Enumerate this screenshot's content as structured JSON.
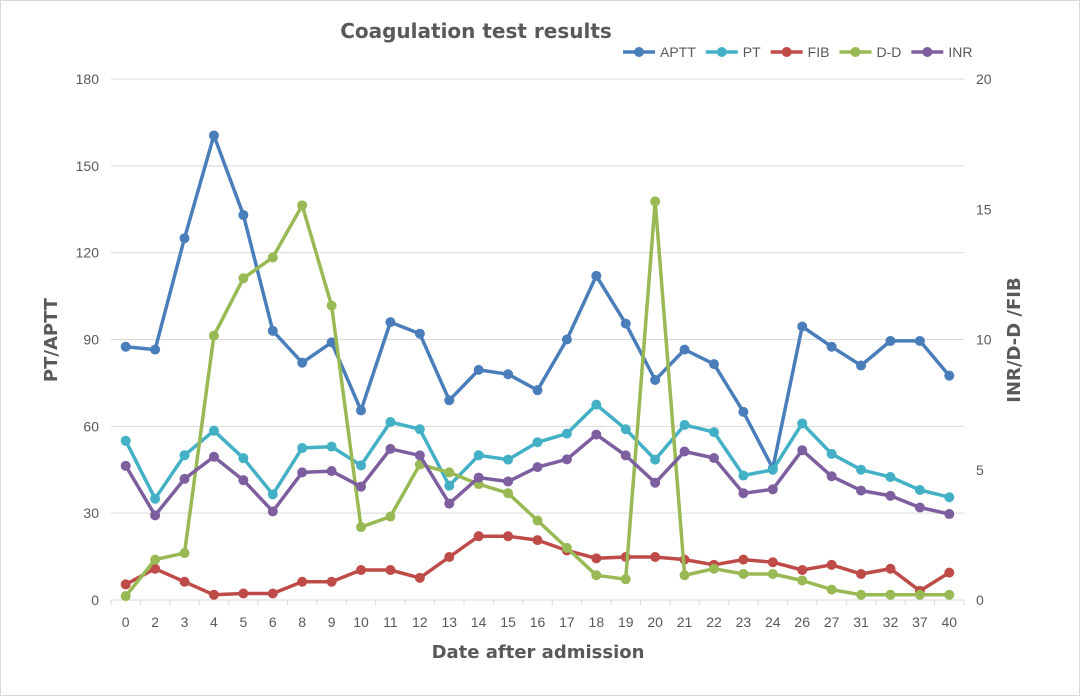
{
  "chart_data": {
    "type": "line",
    "title": "Coagulation test results",
    "xlabel": "Date after admission",
    "ylabel_left": "PT/APTT",
    "ylabel_right": "INR/D-D /FIB",
    "ylim_left": [
      0,
      180
    ],
    "yticks_left": [
      0,
      30,
      60,
      90,
      120,
      150,
      180
    ],
    "ylim_right": [
      0,
      20
    ],
    "yticks_right": [
      0,
      5,
      10,
      15,
      20
    ],
    "grid": "horizontal",
    "legend_position": "top-right",
    "categories": [
      "0",
      "2",
      "3",
      "4",
      "5",
      "6",
      "8",
      "9",
      "10",
      "11",
      "12",
      "13",
      "14",
      "15",
      "16",
      "17",
      "18",
      "19",
      "20",
      "21",
      "22",
      "23",
      "24",
      "26",
      "27",
      "31",
      "32",
      "37",
      "40"
    ],
    "series": [
      {
        "name": "APTT",
        "axis": "left",
        "color": "#4a7ebb",
        "values": [
          87.5,
          86.5,
          125,
          160.5,
          133,
          93,
          82,
          89,
          65.5,
          96,
          92,
          69,
          79.5,
          78,
          72.5,
          90,
          112,
          95.5,
          76,
          86.5,
          81.5,
          65,
          45.5,
          94.5,
          87.5,
          81,
          89.5,
          89.5,
          77.5
        ]
      },
      {
        "name": "PT",
        "axis": "left",
        "color": "#43b0c6",
        "values": [
          55,
          35,
          50,
          58.5,
          49,
          36.5,
          52.5,
          53,
          46.5,
          61.5,
          59,
          39.5,
          50,
          48.5,
          54.5,
          57.5,
          67.5,
          59,
          48.5,
          60.5,
          58,
          43,
          45,
          61,
          50.5,
          45,
          42.5,
          38,
          35.5
        ]
      },
      {
        "name": "FIB",
        "axis": "right",
        "color": "#be4b48",
        "values": [
          0.6,
          1.2,
          0.7,
          0.2,
          0.25,
          0.25,
          0.7,
          0.7,
          1.15,
          1.15,
          0.85,
          1.65,
          2.45,
          2.45,
          2.3,
          1.9,
          1.6,
          1.65,
          1.65,
          1.55,
          1.35,
          1.55,
          1.45,
          1.15,
          1.35,
          1.0,
          1.2,
          0.35,
          1.05
        ]
      },
      {
        "name": "D-D",
        "axis": "right",
        "color": "#98b954",
        "values": [
          0.15,
          1.55,
          1.8,
          10.15,
          12.35,
          13.15,
          15.15,
          11.3,
          2.8,
          3.2,
          5.2,
          4.9,
          4.45,
          4.1,
          3.05,
          2.0,
          0.95,
          0.8,
          15.3,
          0.95,
          1.2,
          1.0,
          1.0,
          0.75,
          0.4,
          0.2,
          0.2,
          0.2,
          0.2
        ]
      },
      {
        "name": "INR",
        "axis": "right",
        "color": "#7d5fa0",
        "values": [
          5.15,
          3.25,
          4.65,
          5.5,
          4.6,
          3.4,
          4.9,
          4.95,
          4.35,
          5.8,
          5.55,
          3.7,
          4.7,
          4.55,
          5.1,
          5.4,
          6.35,
          5.55,
          4.5,
          5.7,
          5.45,
          4.1,
          4.25,
          5.75,
          4.75,
          4.2,
          4.0,
          3.55,
          3.3
        ]
      }
    ]
  }
}
